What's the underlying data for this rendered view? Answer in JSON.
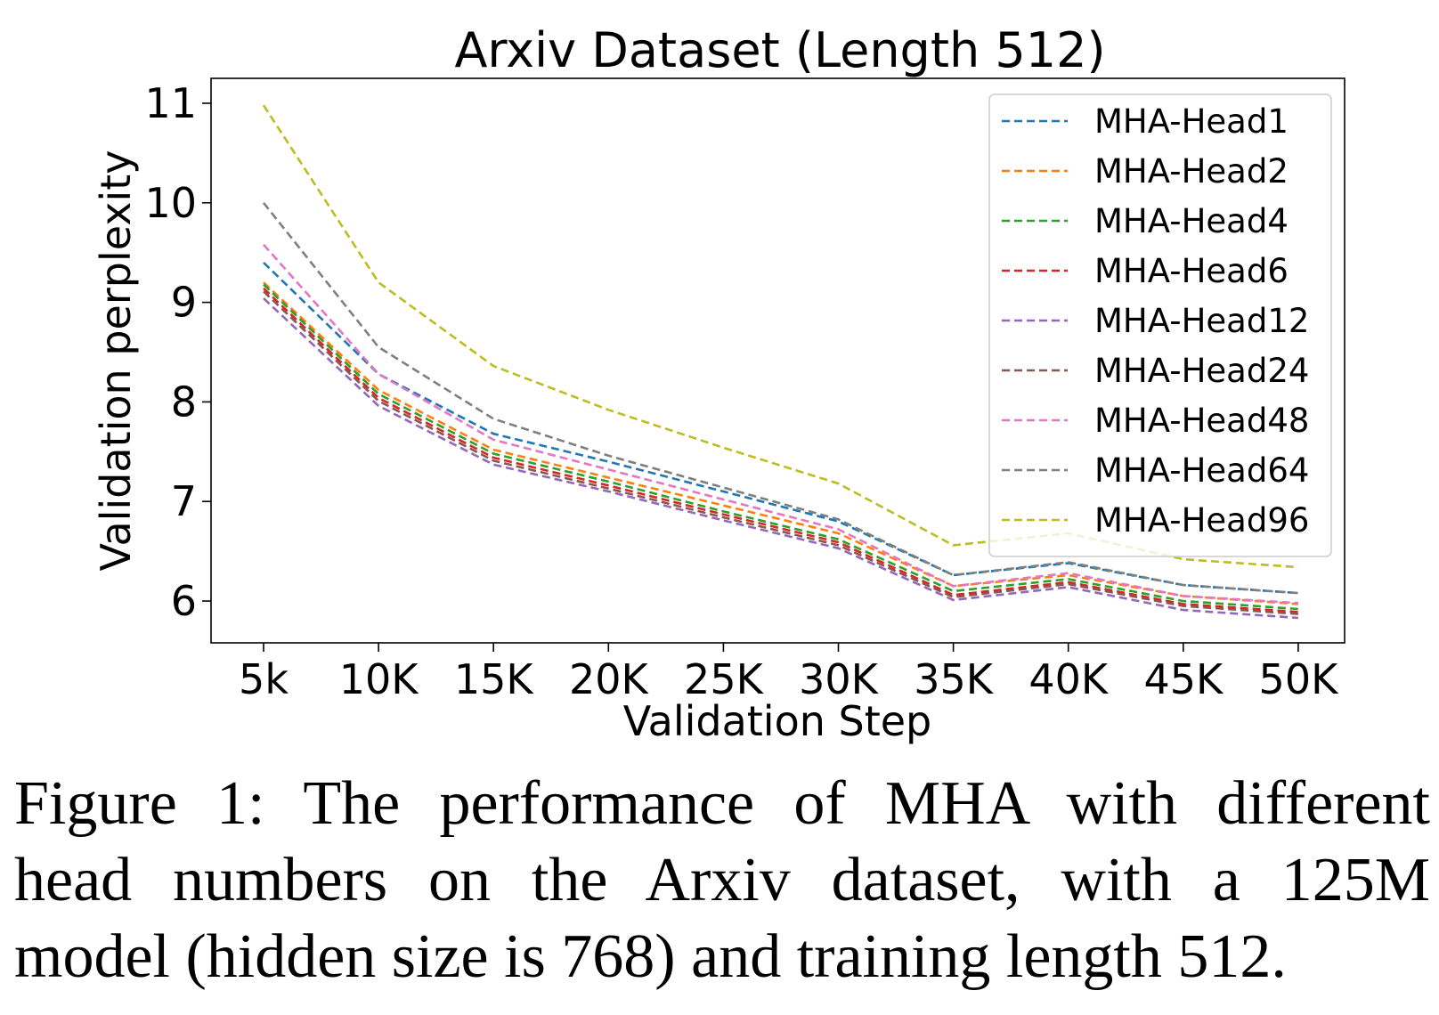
{
  "chart_data": {
    "type": "line",
    "title": "Arxiv Dataset (Length 512)",
    "xlabel": "Validation Step",
    "ylabel": "Validation perplexity",
    "categories": [
      "5k",
      "10K",
      "15K",
      "20K",
      "25K",
      "30K",
      "35K",
      "40K",
      "45K",
      "50K"
    ],
    "yticks": [
      6,
      7,
      8,
      9,
      10,
      11
    ],
    "ylim": [
      5.58,
      11.25
    ],
    "grid": false,
    "line_style": "dashed",
    "legend_position": "top-right",
    "series": [
      {
        "name": "MHA-Head1",
        "color": "#1f77b4",
        "values": [
          9.4,
          8.28,
          7.68,
          7.4,
          7.1,
          6.8,
          6.26,
          6.38,
          6.16,
          6.08
        ]
      },
      {
        "name": "MHA-Head2",
        "color": "#ff7f0e",
        "values": [
          9.2,
          8.12,
          7.52,
          7.24,
          6.96,
          6.68,
          6.15,
          6.26,
          6.05,
          5.97
        ]
      },
      {
        "name": "MHA-Head4",
        "color": "#2ca02c",
        "values": [
          9.18,
          8.08,
          7.48,
          7.2,
          6.9,
          6.62,
          6.1,
          6.22,
          6.0,
          5.92
        ]
      },
      {
        "name": "MHA-Head6",
        "color": "#d62728",
        "values": [
          9.14,
          8.04,
          7.44,
          7.16,
          6.87,
          6.59,
          6.06,
          6.19,
          5.97,
          5.89
        ]
      },
      {
        "name": "MHA-Head12",
        "color": "#9467bd",
        "values": [
          9.04,
          7.96,
          7.37,
          7.1,
          6.81,
          6.53,
          6.01,
          6.14,
          5.91,
          5.83
        ]
      },
      {
        "name": "MHA-Head24",
        "color": "#8c564b",
        "values": [
          9.11,
          8.01,
          7.41,
          7.13,
          6.84,
          6.56,
          6.04,
          6.17,
          5.95,
          5.87
        ]
      },
      {
        "name": "MHA-Head48",
        "color": "#e377c2",
        "values": [
          9.58,
          8.28,
          7.62,
          7.32,
          7.02,
          6.72,
          6.15,
          6.28,
          6.05,
          5.98
        ]
      },
      {
        "name": "MHA-Head64",
        "color": "#7f7f7f",
        "values": [
          10.0,
          8.55,
          7.83,
          7.46,
          7.14,
          6.82,
          6.26,
          6.39,
          6.16,
          6.08
        ]
      },
      {
        "name": "MHA-Head96",
        "color": "#bcbd22",
        "values": [
          10.98,
          9.2,
          8.36,
          7.92,
          7.54,
          7.18,
          6.56,
          6.68,
          6.42,
          6.34
        ]
      }
    ]
  },
  "caption": {
    "lines": [
      "Figure 1: The performance of MHA with different",
      "head numbers on the Arxiv dataset, with a 125M",
      "model (hidden size is 768) and training length 512."
    ]
  }
}
